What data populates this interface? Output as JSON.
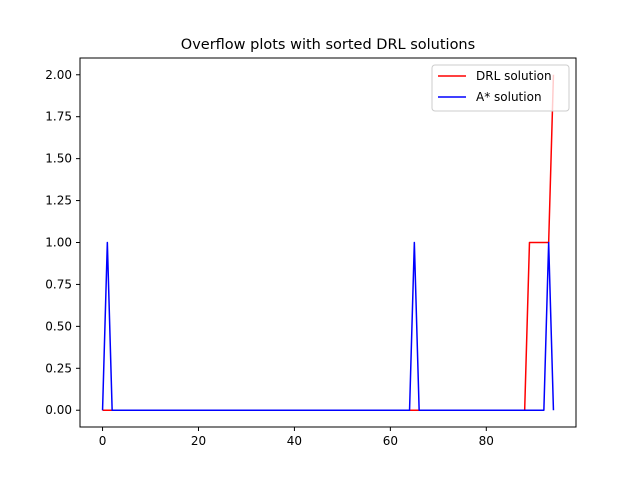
{
  "chart_data": {
    "type": "line",
    "title": "Overflow plots with sorted DRL solutions",
    "xlabel": "",
    "ylabel": "",
    "xlim": [
      -4.7,
      98.7
    ],
    "ylim": [
      -0.1,
      2.1
    ],
    "xticks": [
      0,
      20,
      40,
      60,
      80
    ],
    "yticks": [
      0.0,
      0.25,
      0.5,
      0.75,
      1.0,
      1.25,
      1.5,
      1.75,
      2.0
    ],
    "xtick_labels": [
      "0",
      "20",
      "40",
      "60",
      "80"
    ],
    "ytick_labels": [
      "0.00",
      "0.25",
      "0.50",
      "0.75",
      "1.00",
      "1.25",
      "1.50",
      "1.75",
      "2.00"
    ],
    "grid": false,
    "legend_position": "top-right",
    "series": [
      {
        "name": "DRL solution",
        "color": "#ff0000",
        "x": [
          0,
          88,
          89,
          93,
          94
        ],
        "y": [
          0,
          0,
          1,
          1,
          2
        ]
      },
      {
        "name": "A* solution",
        "color": "#0000ff",
        "x": [
          0,
          1,
          2,
          64,
          65,
          66,
          92,
          93,
          94
        ],
        "y": [
          0,
          1,
          0,
          0,
          1,
          0,
          0,
          1,
          0
        ]
      }
    ]
  }
}
